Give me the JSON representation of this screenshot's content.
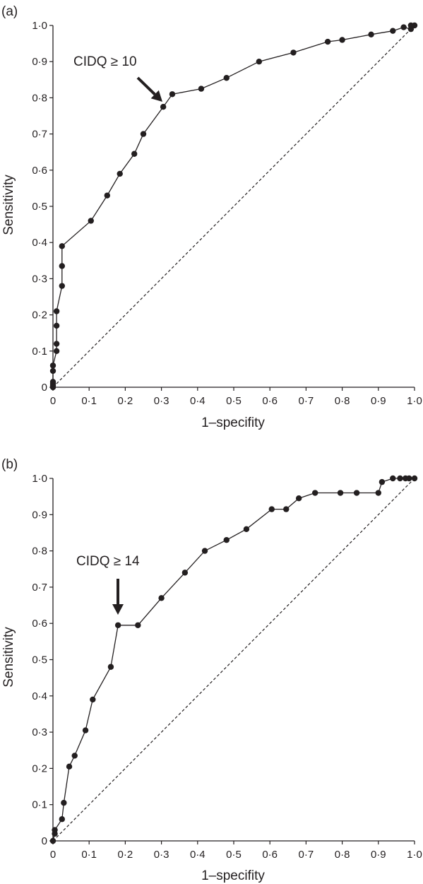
{
  "chart_data": [
    {
      "type": "line",
      "panel_label": "(a)",
      "xlabel": "1–specifity",
      "ylabel": "Sensitivity",
      "xlim": [
        0,
        1
      ],
      "ylim": [
        0,
        1
      ],
      "x_ticks": [
        "0",
        "0·1",
        "0·2",
        "0·3",
        "0·4",
        "0·5",
        "0·6",
        "0·7",
        "0·8",
        "0·9",
        "1·0"
      ],
      "y_ticks": [
        "0",
        "0·1",
        "0·2",
        "0·3",
        "0·4",
        "0·5",
        "0·6",
        "0·7",
        "0·8",
        "0·9",
        "1·0"
      ],
      "reference_line": "dashed diagonal",
      "annotation": {
        "text": "CIDQ ≥ 10",
        "x": 0.305,
        "y": 0.775
      },
      "series": [
        {
          "x": [
            0,
            0,
            0,
            0,
            0,
            0,
            0.01,
            0.01,
            0.01,
            0.01,
            0.025,
            0.025,
            0.025,
            0.105,
            0.15,
            0.185,
            0.225,
            0.25,
            0.305,
            0.33,
            0.41,
            0.48,
            0.57,
            0.665,
            0.76,
            0.8,
            0.88,
            0.94,
            0.97,
            0.99,
            0.99,
            1.0
          ],
          "y": [
            0,
            0.005,
            0.01,
            0.015,
            0.045,
            0.06,
            0.1,
            0.12,
            0.17,
            0.21,
            0.28,
            0.335,
            0.39,
            0.46,
            0.53,
            0.59,
            0.645,
            0.7,
            0.775,
            0.81,
            0.825,
            0.855,
            0.9,
            0.925,
            0.955,
            0.96,
            0.975,
            0.985,
            0.995,
            0.99,
            1.0,
            1.0
          ]
        }
      ]
    },
    {
      "type": "line",
      "panel_label": "(b)",
      "xlabel": "1–specifity",
      "ylabel": "Sensitivity",
      "xlim": [
        0,
        1
      ],
      "ylim": [
        0,
        1
      ],
      "x_ticks": [
        "0",
        "0·1",
        "0·2",
        "0·3",
        "0·4",
        "0·5",
        "0·6",
        "0·7",
        "0·8",
        "0·9",
        "1·0"
      ],
      "y_ticks": [
        "0",
        "0·1",
        "0·2",
        "0·3",
        "0·4",
        "0·5",
        "0·6",
        "0·7",
        "0·8",
        "0·9",
        "1·0"
      ],
      "reference_line": "dashed diagonal",
      "annotation": {
        "text": "CIDQ ≥ 14",
        "x": 0.18,
        "y": 0.595
      },
      "series": [
        {
          "x": [
            0,
            0.005,
            0.005,
            0.025,
            0.03,
            0.045,
            0.06,
            0.09,
            0.11,
            0.16,
            0.18,
            0.235,
            0.3,
            0.365,
            0.42,
            0.48,
            0.535,
            0.605,
            0.645,
            0.68,
            0.725,
            0.795,
            0.84,
            0.9,
            0.91,
            0.94,
            0.96,
            0.975,
            0.985,
            1.0
          ],
          "y": [
            0,
            0.02,
            0.03,
            0.06,
            0.105,
            0.205,
            0.235,
            0.305,
            0.39,
            0.48,
            0.595,
            0.595,
            0.67,
            0.74,
            0.8,
            0.83,
            0.86,
            0.915,
            0.915,
            0.945,
            0.96,
            0.96,
            0.96,
            0.96,
            0.99,
            1.0,
            1.0,
            1.0,
            1.0,
            1.0
          ]
        }
      ]
    }
  ]
}
